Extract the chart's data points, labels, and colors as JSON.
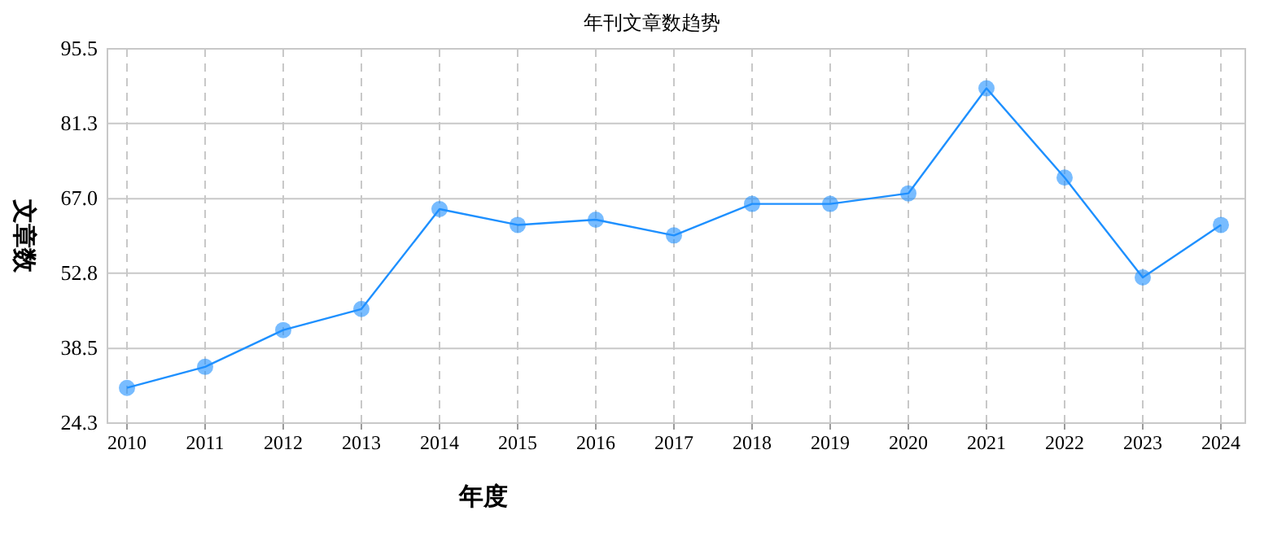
{
  "chart_data": {
    "type": "line",
    "title": "年刊文章数趋势",
    "xlabel": "年度",
    "ylabel": "文章数",
    "categories": [
      "2010",
      "2011",
      "2012",
      "2013",
      "2014",
      "2015",
      "2016",
      "2017",
      "2018",
      "2019",
      "2020",
      "2021",
      "2022",
      "2023",
      "2024"
    ],
    "series": [
      {
        "color": "#1e90ff",
        "values": [
          31,
          35,
          42,
          46,
          65,
          62,
          63,
          60,
          66,
          66,
          68,
          88,
          71,
          52,
          62
        ]
      }
    ],
    "ylim": [
      24.3,
      95.5
    ],
    "yticks": [
      24.3,
      38.5,
      52.8,
      {
        "value": 67,
        "label": "67.0"
      },
      81.3,
      95.5
    ],
    "grid": true,
    "marker": "circle",
    "line_style": "solid"
  }
}
